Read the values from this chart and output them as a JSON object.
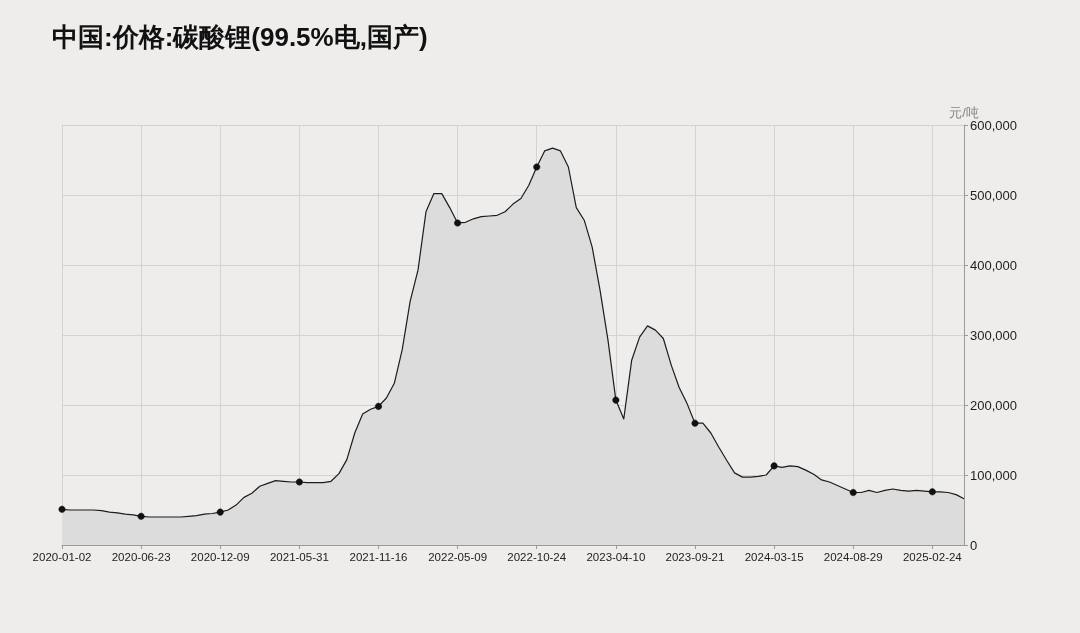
{
  "chart_data": {
    "type": "area",
    "title": "中国:价格:碳酸锂(99.5%电,国产)",
    "ylabel": "元/吨",
    "categories": [
      "2020-01-02",
      null,
      null,
      null,
      null,
      null,
      null,
      null,
      null,
      null,
      "2020-06-23",
      null,
      null,
      null,
      null,
      null,
      null,
      null,
      null,
      null,
      "2020-12-09",
      null,
      null,
      null,
      null,
      null,
      null,
      null,
      null,
      null,
      "2021-05-31",
      null,
      null,
      null,
      null,
      null,
      null,
      null,
      null,
      null,
      "2021-11-16",
      null,
      null,
      null,
      null,
      null,
      null,
      null,
      null,
      null,
      "2022-05-09",
      null,
      null,
      null,
      null,
      null,
      null,
      null,
      null,
      null,
      "2022-10-24",
      null,
      null,
      null,
      null,
      null,
      null,
      null,
      null,
      null,
      "2023-04-10",
      null,
      null,
      null,
      null,
      null,
      null,
      null,
      null,
      null,
      "2023-09-21",
      null,
      null,
      null,
      null,
      null,
      null,
      null,
      null,
      null,
      "2024-03-15",
      null,
      null,
      null,
      null,
      null,
      null,
      null,
      null,
      null,
      "2024-08-29",
      null,
      null,
      null,
      null,
      null,
      null,
      null,
      null,
      null,
      "2025-02-24",
      null,
      null,
      null,
      null
    ],
    "series": [
      {
        "color": "#dcdcdc",
        "values": [
          51000,
          50000,
          50000,
          50000,
          50000,
          49000,
          47000,
          46000,
          44000,
          43000,
          41000,
          40000,
          40000,
          40000,
          40000,
          40000,
          41000,
          42000,
          44000,
          45000,
          47000,
          50000,
          57000,
          68000,
          74000,
          84000,
          88000,
          92000,
          91000,
          90000,
          90000,
          89000,
          89000,
          89000,
          91000,
          102000,
          122000,
          160000,
          187000,
          194000,
          198000,
          210000,
          231000,
          279000,
          348000,
          393000,
          476000,
          502000,
          502000,
          482000,
          460000,
          461000,
          466000,
          469000,
          470000,
          471000,
          476000,
          487000,
          495000,
          514000,
          540000,
          563000,
          567000,
          563000,
          540000,
          482000,
          464000,
          426000,
          364000,
          293000,
          207000,
          180000,
          264000,
          297000,
          313000,
          307000,
          295000,
          257000,
          225000,
          202000,
          174000,
          174000,
          160000,
          140000,
          121000,
          103000,
          97000,
          97000,
          98000,
          100000,
          113000,
          111000,
          113000,
          112000,
          107000,
          101000,
          93000,
          90000,
          85000,
          80000,
          75000,
          75000,
          78000,
          75000,
          78000,
          80000,
          78000,
          77000,
          78000,
          77000,
          76000,
          76000,
          75000,
          72000,
          66000
        ]
      },
      {
        "type": "scatter",
        "marker": "circle",
        "color": "#111111",
        "values": [
          51000,
          null,
          null,
          null,
          null,
          null,
          null,
          null,
          null,
          null,
          41000,
          null,
          null,
          null,
          null,
          null,
          null,
          null,
          null,
          null,
          47000,
          null,
          null,
          null,
          null,
          null,
          null,
          null,
          null,
          null,
          90000,
          null,
          null,
          null,
          null,
          null,
          null,
          null,
          null,
          null,
          198000,
          null,
          null,
          null,
          null,
          null,
          null,
          null,
          null,
          null,
          460000,
          null,
          null,
          null,
          null,
          null,
          null,
          null,
          null,
          null,
          540000,
          null,
          null,
          null,
          null,
          null,
          null,
          null,
          null,
          null,
          207000,
          null,
          null,
          null,
          null,
          null,
          null,
          null,
          null,
          null,
          174000,
          null,
          null,
          null,
          null,
          null,
          null,
          null,
          null,
          null,
          113000,
          null,
          null,
          null,
          null,
          null,
          null,
          null,
          null,
          null,
          75000,
          null,
          null,
          null,
          null,
          null,
          null,
          null,
          null,
          null,
          76000,
          null,
          null,
          null,
          null
        ]
      }
    ],
    "grid": true,
    "ylim": [
      0,
      600000
    ],
    "yticks": [
      0,
      {
        "value": 100000,
        "label": "100,000"
      },
      {
        "value": 200000,
        "label": "200,000"
      },
      {
        "value": 300000,
        "label": "300,000"
      },
      {
        "value": 400000,
        "label": "400,000"
      },
      {
        "value": 500000,
        "label": "500,000"
      },
      {
        "value": 600000,
        "label": "600,000"
      }
    ]
  }
}
